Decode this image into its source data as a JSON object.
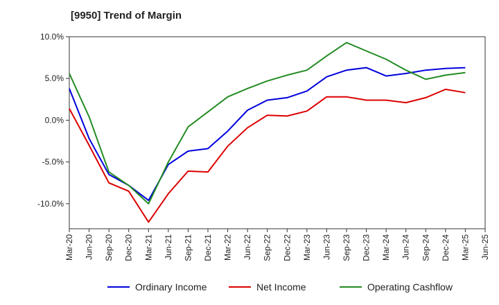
{
  "chart_data": {
    "type": "line",
    "title": "[9950]  Trend of Margin",
    "xlabel": "",
    "ylabel": "",
    "ylim": [
      -13,
      10
    ],
    "grid": true,
    "legend_position": "bottom",
    "categories": [
      "Mar-20",
      "Jun-20",
      "Sep-20",
      "Dec-20",
      "Mar-21",
      "Jun-21",
      "Sep-21",
      "Dec-21",
      "Mar-22",
      "Jun-22",
      "Sep-22",
      "Dec-22",
      "Mar-23",
      "Jun-23",
      "Sep-23",
      "Dec-23",
      "Mar-24",
      "Jun-24",
      "Sep-24",
      "Dec-24",
      "Mar-25",
      "Jun-25"
    ],
    "y_ticks": [
      10,
      5,
      0,
      -5,
      -10
    ],
    "y_tick_labels": [
      "10.0%",
      "5.0%",
      "0.0%",
      "-5.0%",
      "-10.0%"
    ],
    "series": [
      {
        "name": "Ordinary Income",
        "color": "#0000dd",
        "values": [
          3.8,
          -2.2,
          -6.5,
          -7.8,
          -9.6,
          -5.3,
          -3.7,
          -3.4,
          -1.3,
          1.2,
          2.4,
          2.7,
          3.5,
          5.2,
          6.0,
          6.3,
          5.3,
          5.6,
          6.0,
          6.2,
          6.3,
          null
        ]
      },
      {
        "name": "Net Income",
        "color": "#dd0000",
        "values": [
          1.4,
          -3.0,
          -7.5,
          -8.5,
          -12.2,
          -8.8,
          -6.1,
          -6.2,
          -3.1,
          -0.9,
          0.6,
          0.5,
          1.1,
          2.8,
          2.8,
          2.4,
          2.4,
          2.1,
          2.7,
          3.7,
          3.3,
          null
        ]
      },
      {
        "name": "Operating Cashflow",
        "color": "#228b22",
        "values": [
          5.6,
          0.4,
          -6.2,
          -7.8,
          -10.0,
          -5.0,
          -0.8,
          1.0,
          2.8,
          3.8,
          4.7,
          5.4,
          6.0,
          7.7,
          9.3,
          8.3,
          7.3,
          6.0,
          4.9,
          5.4,
          5.7,
          null
        ]
      }
    ]
  }
}
